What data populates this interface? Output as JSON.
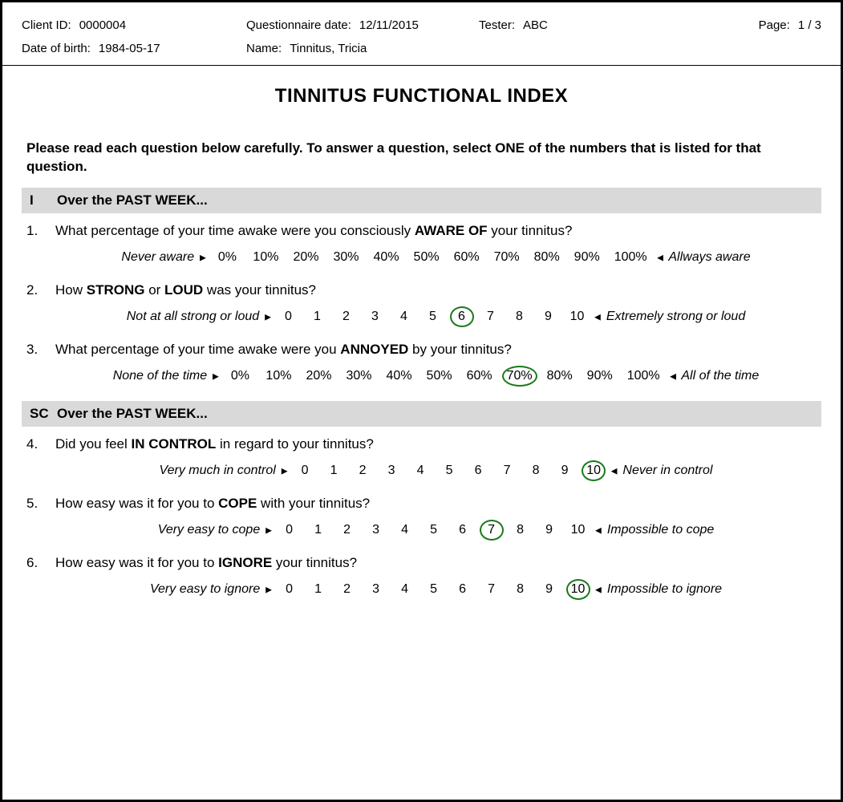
{
  "colors": {
    "section_bar_bg": "#d9d9d9",
    "selected_ring": "#1a7a1a",
    "border": "#000000",
    "text": "#000000"
  },
  "header": {
    "client_id_label": "Client ID:",
    "client_id": "0000004",
    "q_date_label": "Questionnaire date:",
    "q_date": "12/11/2015",
    "tester_label": "Tester:",
    "tester": "ABC",
    "page_label": "Page:",
    "page": "1 / 3",
    "dob_label": "Date of birth:",
    "dob": "1984-05-17",
    "name_label": "Name:",
    "name": "Tinnitus, Tricia"
  },
  "title": "TINNITUS FUNCTIONAL INDEX",
  "intro": "Please read each question below carefully. To answer a question, select ONE of the numbers that is listed for that question.",
  "sections": [
    {
      "code": "I",
      "title": "Over the PAST WEEK...",
      "questions": [
        {
          "num": "1.",
          "text_parts": [
            "What percentage of your time awake were you consciously ",
            "AWARE OF",
            " your tinnitus?"
          ],
          "left_anchor": "Never aware",
          "right_anchor": "Allways aware",
          "options": [
            "0%",
            "10%",
            "20%",
            "30%",
            "40%",
            "50%",
            "60%",
            "70%",
            "80%",
            "90%",
            "100%"
          ],
          "selected_index": null,
          "opt_class": "wide"
        },
        {
          "num": "2.",
          "text_parts": [
            "How ",
            "STRONG",
            " or ",
            "LOUD",
            " was your tinnitus?"
          ],
          "left_anchor": "Not at all strong or loud",
          "right_anchor": "Extremely strong or loud",
          "options": [
            "0",
            "1",
            "2",
            "3",
            "4",
            "5",
            "6",
            "7",
            "8",
            "9",
            "10"
          ],
          "selected_index": 6,
          "opt_class": ""
        },
        {
          "num": "3.",
          "text_parts": [
            "What percentage of your time awake were you ",
            "ANNOYED",
            " by your tinnitus?"
          ],
          "left_anchor": "None of the time",
          "right_anchor": "All of the time",
          "options": [
            "0%",
            "10%",
            "20%",
            "30%",
            "40%",
            "50%",
            "60%",
            "70%",
            "80%",
            "90%",
            "100%"
          ],
          "selected_index": 7,
          "opt_class": "wide"
        }
      ]
    },
    {
      "code": "SC",
      "title": "Over the PAST WEEK...",
      "questions": [
        {
          "num": "4.",
          "text_parts": [
            "Did you feel ",
            "IN CONTROL",
            " in regard to your tinnitus?"
          ],
          "left_anchor": "Very much in control",
          "right_anchor": "Never in control",
          "options": [
            "0",
            "1",
            "2",
            "3",
            "4",
            "5",
            "6",
            "7",
            "8",
            "9",
            "10"
          ],
          "selected_index": 10,
          "opt_class": ""
        },
        {
          "num": "5.",
          "text_parts": [
            "How easy was it for you to ",
            "COPE",
            " with your tinnitus?"
          ],
          "left_anchor": "Very easy to cope",
          "right_anchor": "Impossible to cope",
          "options": [
            "0",
            "1",
            "2",
            "3",
            "4",
            "5",
            "6",
            "7",
            "8",
            "9",
            "10"
          ],
          "selected_index": 7,
          "opt_class": ""
        },
        {
          "num": "6.",
          "text_parts": [
            "How easy was it for you to ",
            "IGNORE",
            " your tinnitus?"
          ],
          "left_anchor": "Very easy to ignore",
          "right_anchor": "Impossible to ignore",
          "options": [
            "0",
            "1",
            "2",
            "3",
            "4",
            "5",
            "6",
            "7",
            "8",
            "9",
            "10"
          ],
          "selected_index": 10,
          "opt_class": ""
        }
      ]
    }
  ]
}
